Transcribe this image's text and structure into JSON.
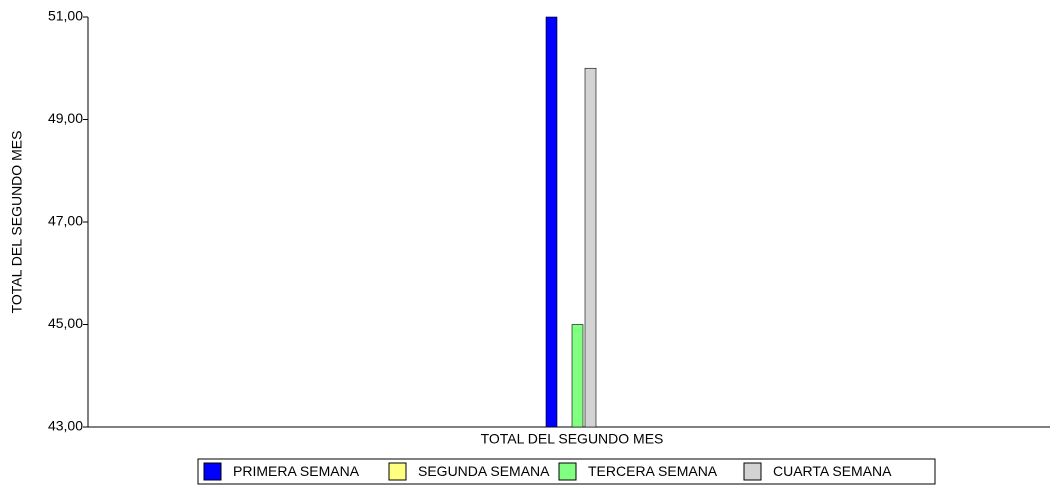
{
  "chart_data": {
    "type": "bar",
    "ylabel": "TOTAL DEL SEGUNDO MES",
    "categories": [
      "TOTAL DEL SEGUNDO MES"
    ],
    "series": [
      {
        "name": "PRIMERA SEMANA",
        "color": "#0000ff",
        "values": [
          51
        ]
      },
      {
        "name": "SEGUNDA SEMANA",
        "color": "#ffff80",
        "values": [
          43
        ]
      },
      {
        "name": "TERCERA SEMANA",
        "color": "#80ff80",
        "values": [
          45
        ]
      },
      {
        "name": "CUARTA SEMANA",
        "color": "#d3d3d3",
        "values": [
          50
        ]
      }
    ],
    "ylim": [
      43,
      51
    ],
    "yticks": [
      {
        "value": 43,
        "label": "43,00"
      },
      {
        "value": 45,
        "label": "45,00"
      },
      {
        "value": 47,
        "label": "47,00"
      },
      {
        "value": 49,
        "label": "49,00"
      },
      {
        "value": 51,
        "label": "51,00"
      }
    ],
    "legend": "bottom"
  }
}
